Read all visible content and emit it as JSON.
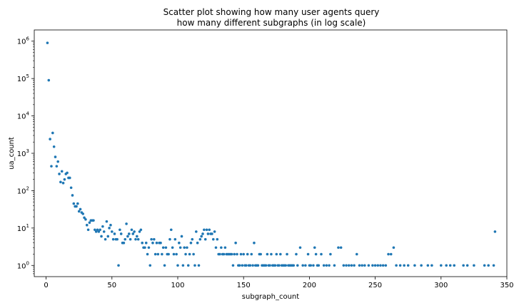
{
  "chart_data": {
    "type": "scatter",
    "title_lines": [
      "Scatter plot showing how many user agents query",
      "how many different subgraphs (in log scale)"
    ],
    "xlabel": "subgraph_count",
    "ylabel": "ua_count",
    "xlim": [
      -9,
      350
    ],
    "ylim_log10": [
      -0.3,
      6.3
    ],
    "y_scale": "log",
    "x_ticks": [
      0,
      50,
      100,
      150,
      200,
      250,
      300,
      350
    ],
    "x_tick_labels": [
      "0",
      "50",
      "100",
      "150",
      "200",
      "250",
      "300",
      "350"
    ],
    "y_ticks_log10": [
      0,
      1,
      2,
      3,
      4,
      5,
      6
    ],
    "y_tick_labels": [
      "10",
      "10",
      "10",
      "10",
      "10",
      "10",
      "10"
    ],
    "y_tick_exponents": [
      "0",
      "1",
      "2",
      "3",
      "4",
      "5",
      "6"
    ],
    "grid": false,
    "marker_color": "#1f77b4",
    "points": [
      [
        1,
        900000
      ],
      [
        2,
        90000
      ],
      [
        3,
        2400
      ],
      [
        4,
        450
      ],
      [
        5,
        3500
      ],
      [
        6,
        1500
      ],
      [
        7,
        800
      ],
      [
        8,
        450
      ],
      [
        9,
        600
      ],
      [
        10,
        280
      ],
      [
        11,
        170
      ],
      [
        12,
        330
      ],
      [
        13,
        160
      ],
      [
        14,
        200
      ],
      [
        15,
        280
      ],
      [
        16,
        300
      ],
      [
        17,
        220
      ],
      [
        18,
        220
      ],
      [
        19,
        120
      ],
      [
        20,
        75
      ],
      [
        21,
        45
      ],
      [
        22,
        38
      ],
      [
        23,
        38
      ],
      [
        24,
        45
      ],
      [
        25,
        28
      ],
      [
        26,
        32
      ],
      [
        27,
        26
      ],
      [
        28,
        24
      ],
      [
        29,
        19
      ],
      [
        30,
        17
      ],
      [
        31,
        12
      ],
      [
        32,
        9
      ],
      [
        33,
        14
      ],
      [
        34,
        16
      ],
      [
        35,
        16
      ],
      [
        36,
        16
      ],
      [
        37,
        9
      ],
      [
        38,
        8
      ],
      [
        39,
        9
      ],
      [
        40,
        8
      ],
      [
        41,
        9
      ],
      [
        42,
        6
      ],
      [
        43,
        11
      ],
      [
        44,
        8
      ],
      [
        45,
        5
      ],
      [
        46,
        15
      ],
      [
        47,
        6
      ],
      [
        48,
        10
      ],
      [
        49,
        12
      ],
      [
        50,
        8
      ],
      [
        51,
        5
      ],
      [
        52,
        7
      ],
      [
        53,
        5
      ],
      [
        54,
        5
      ],
      [
        55,
        1
      ],
      [
        56,
        9
      ],
      [
        57,
        7
      ],
      [
        58,
        4
      ],
      [
        59,
        4
      ],
      [
        60,
        5
      ],
      [
        61,
        13
      ],
      [
        62,
        6
      ],
      [
        63,
        7
      ],
      [
        64,
        5
      ],
      [
        65,
        9
      ],
      [
        66,
        7
      ],
      [
        67,
        8
      ],
      [
        68,
        5
      ],
      [
        69,
        6
      ],
      [
        70,
        5
      ],
      [
        71,
        8
      ],
      [
        72,
        9
      ],
      [
        73,
        4
      ],
      [
        74,
        3
      ],
      [
        75,
        3
      ],
      [
        76,
        4
      ],
      [
        77,
        2
      ],
      [
        78,
        3
      ],
      [
        79,
        1
      ],
      [
        80,
        5
      ],
      [
        81,
        4
      ],
      [
        82,
        5
      ],
      [
        83,
        2
      ],
      [
        84,
        4
      ],
      [
        85,
        2
      ],
      [
        86,
        4
      ],
      [
        87,
        4
      ],
      [
        88,
        2
      ],
      [
        89,
        3
      ],
      [
        90,
        1
      ],
      [
        91,
        3
      ],
      [
        92,
        2
      ],
      [
        93,
        2
      ],
      [
        94,
        5
      ],
      [
        95,
        9
      ],
      [
        96,
        3
      ],
      [
        97,
        2
      ],
      [
        98,
        5
      ],
      [
        99,
        2
      ],
      [
        100,
        1
      ],
      [
        101,
        4
      ],
      [
        102,
        3
      ],
      [
        103,
        6
      ],
      [
        104,
        1
      ],
      [
        105,
        3
      ],
      [
        106,
        2
      ],
      [
        107,
        3
      ],
      [
        108,
        1
      ],
      [
        109,
        2
      ],
      [
        110,
        4
      ],
      [
        111,
        5
      ],
      [
        112,
        2
      ],
      [
        113,
        1
      ],
      [
        114,
        8
      ],
      [
        115,
        4
      ],
      [
        116,
        1
      ],
      [
        117,
        5
      ],
      [
        118,
        6
      ],
      [
        119,
        7
      ],
      [
        120,
        9
      ],
      [
        121,
        5
      ],
      [
        122,
        9
      ],
      [
        123,
        7
      ],
      [
        124,
        9
      ],
      [
        125,
        7
      ],
      [
        126,
        7
      ],
      [
        127,
        5
      ],
      [
        128,
        8
      ],
      [
        129,
        3
      ],
      [
        130,
        5
      ],
      [
        131,
        2
      ],
      [
        132,
        2
      ],
      [
        133,
        3
      ],
      [
        134,
        2
      ],
      [
        135,
        2
      ],
      [
        136,
        3
      ],
      [
        137,
        2
      ],
      [
        138,
        2
      ],
      [
        139,
        2
      ],
      [
        140,
        2
      ],
      [
        141,
        2
      ],
      [
        142,
        1
      ],
      [
        143,
        2
      ],
      [
        144,
        4
      ],
      [
        145,
        2
      ],
      [
        146,
        1
      ],
      [
        147,
        1
      ],
      [
        148,
        2
      ],
      [
        149,
        1
      ],
      [
        150,
        2
      ],
      [
        151,
        1
      ],
      [
        152,
        1
      ],
      [
        153,
        2
      ],
      [
        154,
        1
      ],
      [
        155,
        1
      ],
      [
        156,
        2
      ],
      [
        157,
        1
      ],
      [
        158,
        4
      ],
      [
        159,
        1
      ],
      [
        160,
        1
      ],
      [
        161,
        1
      ],
      [
        162,
        2
      ],
      [
        163,
        2
      ],
      [
        164,
        1
      ],
      [
        165,
        1
      ],
      [
        166,
        1
      ],
      [
        167,
        1
      ],
      [
        168,
        2
      ],
      [
        169,
        1
      ],
      [
        170,
        1
      ],
      [
        171,
        2
      ],
      [
        172,
        1
      ],
      [
        173,
        1
      ],
      [
        174,
        1
      ],
      [
        175,
        2
      ],
      [
        176,
        1
      ],
      [
        177,
        1
      ],
      [
        178,
        2
      ],
      [
        179,
        1
      ],
      [
        180,
        1
      ],
      [
        181,
        1
      ],
      [
        182,
        1
      ],
      [
        183,
        2
      ],
      [
        184,
        1
      ],
      [
        185,
        1
      ],
      [
        186,
        1
      ],
      [
        187,
        1
      ],
      [
        188,
        1
      ],
      [
        190,
        2
      ],
      [
        191,
        1
      ],
      [
        193,
        3
      ],
      [
        195,
        1
      ],
      [
        197,
        1
      ],
      [
        199,
        2
      ],
      [
        200,
        1
      ],
      [
        201,
        1
      ],
      [
        203,
        1
      ],
      [
        204,
        3
      ],
      [
        205,
        2
      ],
      [
        206,
        1
      ],
      [
        207,
        1
      ],
      [
        209,
        2
      ],
      [
        211,
        1
      ],
      [
        213,
        1
      ],
      [
        215,
        1
      ],
      [
        216,
        2
      ],
      [
        219,
        1
      ],
      [
        222,
        3
      ],
      [
        224,
        3
      ],
      [
        226,
        1
      ],
      [
        228,
        1
      ],
      [
        230,
        1
      ],
      [
        232,
        1
      ],
      [
        234,
        1
      ],
      [
        236,
        2
      ],
      [
        238,
        1
      ],
      [
        240,
        1
      ],
      [
        242,
        1
      ],
      [
        245,
        1
      ],
      [
        248,
        1
      ],
      [
        250,
        1
      ],
      [
        252,
        1
      ],
      [
        254,
        1
      ],
      [
        256,
        1
      ],
      [
        258,
        1
      ],
      [
        260,
        2
      ],
      [
        262,
        2
      ],
      [
        264,
        3
      ],
      [
        266,
        1
      ],
      [
        269,
        1
      ],
      [
        272,
        1
      ],
      [
        275,
        1
      ],
      [
        280,
        1
      ],
      [
        285,
        1
      ],
      [
        290,
        1
      ],
      [
        293,
        1
      ],
      [
        300,
        1
      ],
      [
        304,
        1
      ],
      [
        307,
        1
      ],
      [
        310,
        1
      ],
      [
        317,
        1
      ],
      [
        320,
        1
      ],
      [
        325,
        1
      ],
      [
        333,
        1
      ],
      [
        336,
        1
      ],
      [
        340,
        1
      ],
      [
        341,
        8
      ]
    ]
  }
}
